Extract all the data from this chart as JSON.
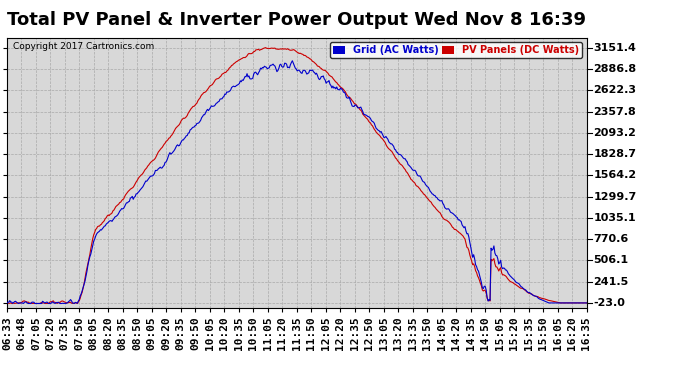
{
  "title": "Total PV Panel & Inverter Power Output Wed Nov 8 16:39",
  "copyright": "Copyright 2017 Cartronics.com",
  "legend_grid": "Grid (AC Watts)",
  "legend_pv": "PV Panels (DC Watts)",
  "y_ticks": [
    -23.0,
    241.5,
    506.1,
    770.6,
    1035.1,
    1299.7,
    1564.2,
    1828.7,
    2093.2,
    2357.8,
    2622.3,
    2886.8,
    3151.4
  ],
  "ylim_min": -80,
  "ylim_max": 3280,
  "grid_color": "#0000cc",
  "pv_color": "#cc0000",
  "background_color": "#d8d8d8",
  "title_fontsize": 13,
  "tick_fontsize": 8,
  "x_labels": [
    "06:33",
    "06:48",
    "07:05",
    "07:20",
    "07:35",
    "07:50",
    "08:05",
    "08:20",
    "08:35",
    "08:50",
    "09:05",
    "09:20",
    "09:35",
    "09:50",
    "10:05",
    "10:20",
    "10:35",
    "10:50",
    "11:05",
    "11:20",
    "11:35",
    "11:50",
    "12:05",
    "12:20",
    "12:35",
    "12:50",
    "13:05",
    "13:20",
    "13:35",
    "13:50",
    "14:05",
    "14:20",
    "14:35",
    "14:50",
    "15:05",
    "15:20",
    "15:35",
    "15:50",
    "16:05",
    "16:20",
    "16:35"
  ]
}
